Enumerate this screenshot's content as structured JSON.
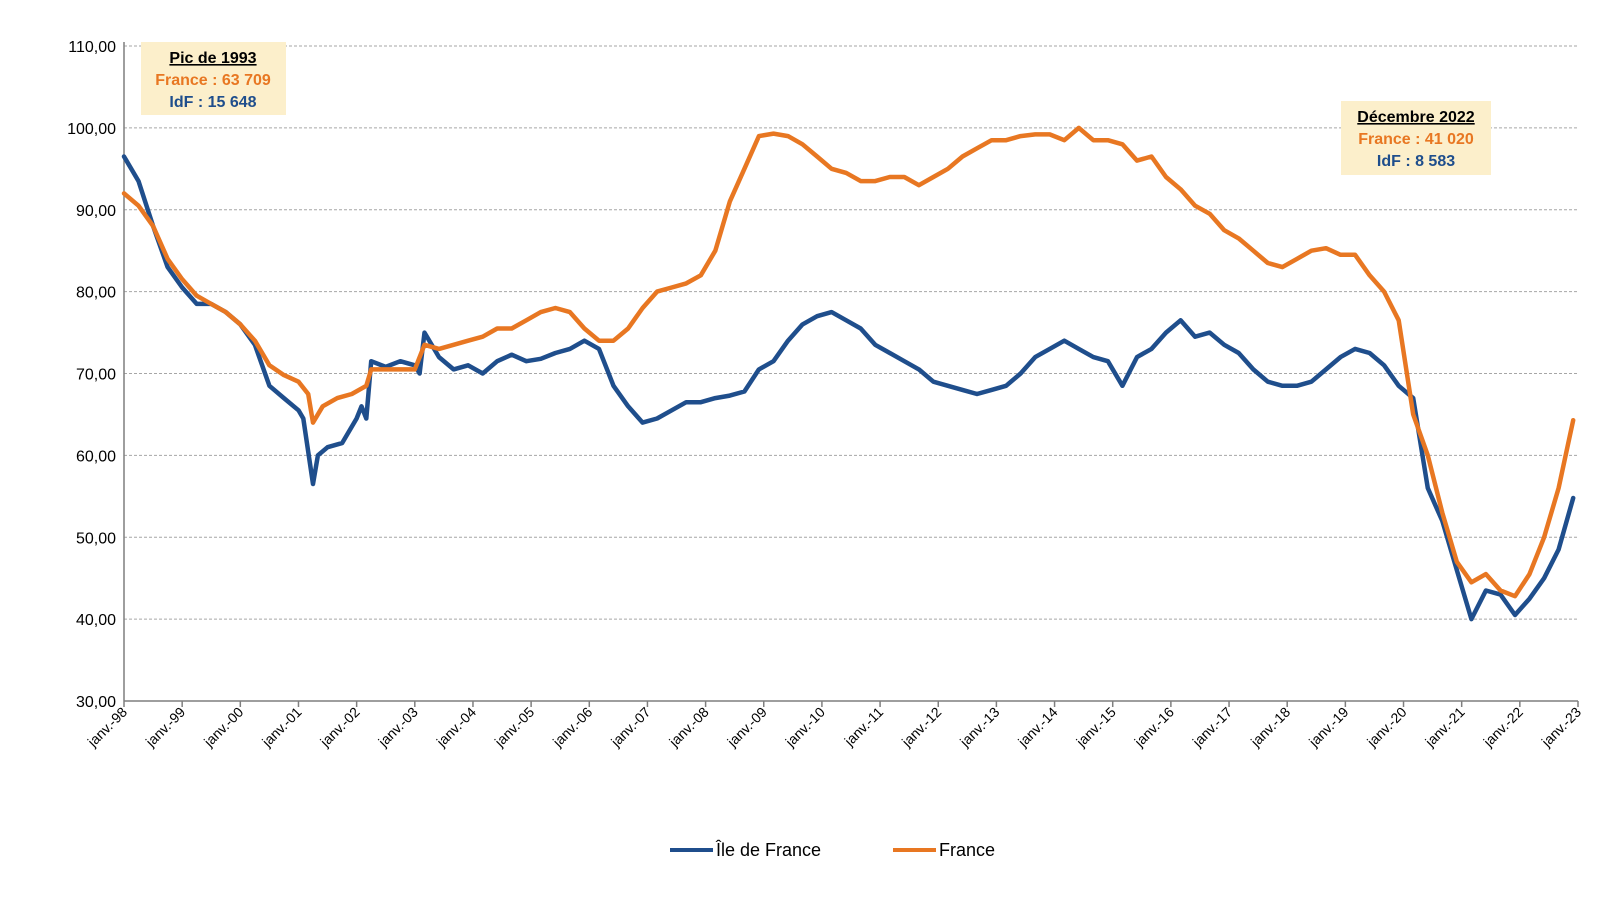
{
  "chart_data": {
    "type": "line",
    "title": "",
    "xlabel": "",
    "ylabel": "",
    "x_start": "janv.-98",
    "x_tick_labels": [
      "janv.-98",
      "janv.-99",
      "janv.-00",
      "janv.-01",
      "janv.-02",
      "janv.-03",
      "janv.-04",
      "janv.-05",
      "janv.-06",
      "janv.-07",
      "janv.-08",
      "janv.-09",
      "janv.-10",
      "janv.-11",
      "janv.-12",
      "janv.-13",
      "janv.-14",
      "janv.-15",
      "janv.-16",
      "janv.-17",
      "janv.-18",
      "janv.-19",
      "janv.-20",
      "janv.-21",
      "janv.-22",
      "janv.-23"
    ],
    "y_tick_labels": [
      "30,00",
      "40,00",
      "50,00",
      "60,00",
      "70,00",
      "80,00",
      "90,00",
      "100,00",
      "110,00"
    ],
    "ylim": [
      30,
      110
    ],
    "grid": "horizontal dashed",
    "legend_position": "bottom-center",
    "series": [
      {
        "name": "Île de France",
        "color": "#1F4E8C",
        "points": [
          [
            "1998-01",
            96.5
          ],
          [
            "1998-04",
            93.5
          ],
          [
            "1998-07",
            88.0
          ],
          [
            "1998-10",
            83.0
          ],
          [
            "1999-01",
            80.5
          ],
          [
            "1999-04",
            78.5
          ],
          [
            "1999-07",
            78.5
          ],
          [
            "1999-10",
            77.5
          ],
          [
            "2000-01",
            76.0
          ],
          [
            "2000-04",
            73.5
          ],
          [
            "2000-07",
            68.5
          ],
          [
            "2000-10",
            67.0
          ],
          [
            "2001-01",
            65.5
          ],
          [
            "2001-02",
            64.5
          ],
          [
            "2001-04",
            56.5
          ],
          [
            "2001-05",
            60.0
          ],
          [
            "2001-07",
            61.0
          ],
          [
            "2001-10",
            61.5
          ],
          [
            "2002-01",
            64.5
          ],
          [
            "2002-02",
            66.0
          ],
          [
            "2002-03",
            64.5
          ],
          [
            "2002-04",
            71.5
          ],
          [
            "2002-07",
            70.8
          ],
          [
            "2002-10",
            71.5
          ],
          [
            "2003-01",
            71.0
          ],
          [
            "2003-02",
            70.0
          ],
          [
            "2003-03",
            75.0
          ],
          [
            "2003-06",
            72.0
          ],
          [
            "2003-09",
            70.5
          ],
          [
            "2003-12",
            71.0
          ],
          [
            "2004-03",
            70.0
          ],
          [
            "2004-06",
            71.5
          ],
          [
            "2004-09",
            72.3
          ],
          [
            "2004-12",
            71.5
          ],
          [
            "2005-03",
            71.8
          ],
          [
            "2005-06",
            72.5
          ],
          [
            "2005-09",
            73.0
          ],
          [
            "2005-12",
            74.0
          ],
          [
            "2006-03",
            73.0
          ],
          [
            "2006-06",
            68.5
          ],
          [
            "2006-09",
            66.0
          ],
          [
            "2006-12",
            64.0
          ],
          [
            "2007-03",
            64.5
          ],
          [
            "2007-06",
            65.5
          ],
          [
            "2007-09",
            66.5
          ],
          [
            "2007-12",
            66.5
          ],
          [
            "2008-03",
            67.0
          ],
          [
            "2008-06",
            67.3
          ],
          [
            "2008-09",
            67.8
          ],
          [
            "2008-12",
            70.5
          ],
          [
            "2009-03",
            71.5
          ],
          [
            "2009-06",
            74.0
          ],
          [
            "2009-09",
            76.0
          ],
          [
            "2009-12",
            77.0
          ],
          [
            "2010-03",
            77.5
          ],
          [
            "2010-06",
            76.5
          ],
          [
            "2010-09",
            75.5
          ],
          [
            "2010-12",
            73.5
          ],
          [
            "2011-03",
            72.5
          ],
          [
            "2011-06",
            71.5
          ],
          [
            "2011-09",
            70.5
          ],
          [
            "2011-12",
            69.0
          ],
          [
            "2012-03",
            68.5
          ],
          [
            "2012-06",
            68.0
          ],
          [
            "2012-09",
            67.5
          ],
          [
            "2012-12",
            68.0
          ],
          [
            "2013-03",
            68.5
          ],
          [
            "2013-06",
            70.0
          ],
          [
            "2013-09",
            72.0
          ],
          [
            "2013-12",
            73.0
          ],
          [
            "2014-03",
            74.0
          ],
          [
            "2014-06",
            73.0
          ],
          [
            "2014-09",
            72.0
          ],
          [
            "2014-12",
            71.5
          ],
          [
            "2015-03",
            68.5
          ],
          [
            "2015-06",
            72.0
          ],
          [
            "2015-09",
            73.0
          ],
          [
            "2015-12",
            75.0
          ],
          [
            "2016-03",
            76.5
          ],
          [
            "2016-06",
            74.5
          ],
          [
            "2016-09",
            75.0
          ],
          [
            "2016-12",
            73.5
          ],
          [
            "2017-03",
            72.5
          ],
          [
            "2017-06",
            70.5
          ],
          [
            "2017-09",
            69.0
          ],
          [
            "2017-12",
            68.5
          ],
          [
            "2018-03",
            68.5
          ],
          [
            "2018-06",
            69.0
          ],
          [
            "2018-09",
            70.5
          ],
          [
            "2018-12",
            72.0
          ],
          [
            "2019-03",
            73.0
          ],
          [
            "2019-06",
            72.5
          ],
          [
            "2019-09",
            71.0
          ],
          [
            "2019-12",
            68.5
          ],
          [
            "2020-03",
            67.0
          ],
          [
            "2020-06",
            56.0
          ],
          [
            "2020-09",
            52.0
          ],
          [
            "2020-12",
            46.0
          ],
          [
            "2021-03",
            40.0
          ],
          [
            "2021-06",
            43.5
          ],
          [
            "2021-09",
            43.0
          ],
          [
            "2021-12",
            40.5
          ],
          [
            "2022-03",
            42.5
          ],
          [
            "2022-06",
            45.0
          ],
          [
            "2022-09",
            48.5
          ],
          [
            "2022-12",
            54.8
          ]
        ]
      },
      {
        "name": "France",
        "color": "#E87722",
        "points": [
          [
            "1998-01",
            92.0
          ],
          [
            "1998-04",
            90.5
          ],
          [
            "1998-07",
            88.0
          ],
          [
            "1998-10",
            84.0
          ],
          [
            "1999-01",
            81.5
          ],
          [
            "1999-04",
            79.5
          ],
          [
            "1999-07",
            78.5
          ],
          [
            "1999-10",
            77.5
          ],
          [
            "2000-01",
            76.0
          ],
          [
            "2000-04",
            74.0
          ],
          [
            "2000-07",
            71.0
          ],
          [
            "2000-10",
            69.8
          ],
          [
            "2001-01",
            69.0
          ],
          [
            "2001-03",
            67.5
          ],
          [
            "2001-04",
            64.0
          ],
          [
            "2001-06",
            66.0
          ],
          [
            "2001-09",
            67.0
          ],
          [
            "2001-12",
            67.5
          ],
          [
            "2002-03",
            68.5
          ],
          [
            "2002-04",
            70.5
          ],
          [
            "2002-07",
            70.5
          ],
          [
            "2002-10",
            70.5
          ],
          [
            "2003-01",
            70.5
          ],
          [
            "2003-03",
            73.5
          ],
          [
            "2003-06",
            73.0
          ],
          [
            "2003-09",
            73.5
          ],
          [
            "2003-12",
            74.0
          ],
          [
            "2004-03",
            74.5
          ],
          [
            "2004-06",
            75.5
          ],
          [
            "2004-09",
            75.5
          ],
          [
            "2004-12",
            76.5
          ],
          [
            "2005-03",
            77.5
          ],
          [
            "2005-06",
            78.0
          ],
          [
            "2005-09",
            77.5
          ],
          [
            "2005-12",
            75.5
          ],
          [
            "2006-03",
            74.0
          ],
          [
            "2006-06",
            74.0
          ],
          [
            "2006-09",
            75.5
          ],
          [
            "2006-12",
            78.0
          ],
          [
            "2007-03",
            80.0
          ],
          [
            "2007-06",
            80.5
          ],
          [
            "2007-09",
            81.0
          ],
          [
            "2007-12",
            82.0
          ],
          [
            "2008-03",
            85.0
          ],
          [
            "2008-06",
            91.0
          ],
          [
            "2008-09",
            95.0
          ],
          [
            "2008-12",
            99.0
          ],
          [
            "2009-03",
            99.3
          ],
          [
            "2009-06",
            99.0
          ],
          [
            "2009-09",
            98.0
          ],
          [
            "2009-12",
            96.5
          ],
          [
            "2010-03",
            95.0
          ],
          [
            "2010-06",
            94.5
          ],
          [
            "2010-09",
            93.5
          ],
          [
            "2010-12",
            93.5
          ],
          [
            "2011-03",
            94.0
          ],
          [
            "2011-06",
            94.0
          ],
          [
            "2011-09",
            93.0
          ],
          [
            "2011-12",
            94.0
          ],
          [
            "2012-03",
            95.0
          ],
          [
            "2012-06",
            96.5
          ],
          [
            "2012-09",
            97.5
          ],
          [
            "2012-12",
            98.5
          ],
          [
            "2013-03",
            98.5
          ],
          [
            "2013-06",
            99.0
          ],
          [
            "2013-09",
            99.2
          ],
          [
            "2013-12",
            99.2
          ],
          [
            "2014-03",
            98.5
          ],
          [
            "2014-06",
            100.0
          ],
          [
            "2014-09",
            98.5
          ],
          [
            "2014-12",
            98.5
          ],
          [
            "2015-03",
            98.0
          ],
          [
            "2015-06",
            96.0
          ],
          [
            "2015-09",
            96.5
          ],
          [
            "2015-12",
            94.0
          ],
          [
            "2016-03",
            92.5
          ],
          [
            "2016-06",
            90.5
          ],
          [
            "2016-09",
            89.5
          ],
          [
            "2016-12",
            87.5
          ],
          [
            "2017-03",
            86.5
          ],
          [
            "2017-06",
            85.0
          ],
          [
            "2017-09",
            83.5
          ],
          [
            "2017-12",
            83.0
          ],
          [
            "2018-03",
            84.0
          ],
          [
            "2018-06",
            85.0
          ],
          [
            "2018-09",
            85.3
          ],
          [
            "2018-12",
            84.5
          ],
          [
            "2019-03",
            84.5
          ],
          [
            "2019-06",
            82.0
          ],
          [
            "2019-09",
            80.0
          ],
          [
            "2019-12",
            76.5
          ],
          [
            "2020-03",
            65.0
          ],
          [
            "2020-06",
            60.0
          ],
          [
            "2020-09",
            53.0
          ],
          [
            "2020-12",
            47.0
          ],
          [
            "2021-03",
            44.5
          ],
          [
            "2021-06",
            45.5
          ],
          [
            "2021-09",
            43.5
          ],
          [
            "2021-12",
            42.8
          ],
          [
            "2022-03",
            45.5
          ],
          [
            "2022-06",
            50.0
          ],
          [
            "2022-09",
            56.0
          ],
          [
            "2022-12",
            64.3
          ]
        ]
      }
    ],
    "annotations": [
      {
        "title": "Pic de 1993",
        "lines": [
          {
            "text": "France : 63 709",
            "color": "#E87722"
          },
          {
            "text": "IdF : 15 648",
            "color": "#1F4E8C"
          }
        ],
        "background": "#FCEFCB"
      },
      {
        "title": "Décembre 2022",
        "lines": [
          {
            "text": "France : 41 020",
            "color": "#E87722"
          },
          {
            "text": "IdF : 8 583",
            "color": "#1F4E8C"
          }
        ],
        "background": "#FCEFCB"
      }
    ]
  }
}
